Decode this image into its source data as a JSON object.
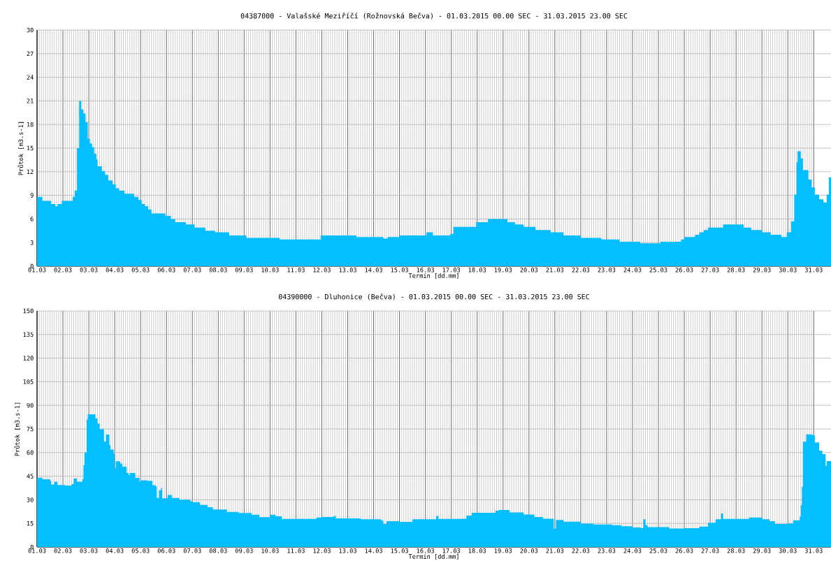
{
  "chart_data": [
    {
      "type": "area",
      "title": "04387000 - Valašské Meziříčí (Rožnovská Bečva) - 01.03.2015 00.00 SEC - 31.03.2015 23.00 SEC",
      "xlabel": "Termín [dd.mm]",
      "ylabel": "Průtok [m3.s-1]",
      "color": "#04befe",
      "grid": true,
      "x": [
        "2015-03-01T00:00",
        "2015-03-01T05:00",
        "2015-03-01T13:00",
        "2015-03-01T17:00",
        "2015-03-01T19:00",
        "2015-03-01T23:00",
        "2015-03-02T09:00",
        "2015-03-02T11:00",
        "2015-03-02T13:00",
        "2015-03-02T15:00",
        "2015-03-02T17:00",
        "2015-03-02T19:00",
        "2015-03-02T21:00",
        "2015-03-02T23:00",
        "2015-03-03T01:00",
        "2015-03-03T03:00",
        "2015-03-03T05:00",
        "2015-03-03T07:00",
        "2015-03-03T08:00",
        "2015-03-03T12:00",
        "2015-03-03T15:00",
        "2015-03-03T18:00",
        "2015-03-03T22:00",
        "2015-03-04T01:00",
        "2015-03-04T04:00",
        "2015-03-04T09:00",
        "2015-03-04T18:00",
        "2015-03-04T22:00",
        "2015-03-05T01:00",
        "2015-03-05T04:00",
        "2015-03-05T07:00",
        "2015-03-05T10:00",
        "2015-03-05T23:00",
        "2015-03-06T04:00",
        "2015-03-06T08:00",
        "2015-03-06T18:00",
        "2015-03-07T02:00",
        "2015-03-07T12:00",
        "2015-03-07T21:00",
        "2015-03-08T10:00",
        "2015-03-09T02:00",
        "2015-03-10T09:00",
        "2015-03-11T23:00",
        "2015-03-13T08:00",
        "2015-03-14T09:00",
        "2015-03-14T13:00",
        "2015-03-15T00:00",
        "2015-03-16T01:00",
        "2015-03-16T07:00",
        "2015-03-16T23:00",
        "2015-03-17T02:00",
        "2015-03-17T23:00",
        "2015-03-18T10:00",
        "2015-03-19T04:00",
        "2015-03-19T11:00",
        "2015-03-19T19:00",
        "2015-03-20T06:00",
        "2015-03-20T20:00",
        "2015-03-21T08:00",
        "2015-03-22T00:00",
        "2015-03-22T19:00",
        "2015-03-23T12:00",
        "2015-03-24T07:00",
        "2015-03-25T02:00",
        "2015-03-25T21:00",
        "2015-03-26T00:00",
        "2015-03-26T10:00",
        "2015-03-26T14:00",
        "2015-03-26T18:00",
        "2015-03-26T22:00",
        "2015-03-27T12:00",
        "2015-03-28T07:00",
        "2015-03-28T14:00",
        "2015-03-29T00:00",
        "2015-03-29T08:00",
        "2015-03-29T18:00",
        "2015-03-29T23:00",
        "2015-03-30T03:00",
        "2015-03-30T06:00",
        "2015-03-30T08:00",
        "2015-03-30T09:00",
        "2015-03-30T12:00",
        "2015-03-30T14:00",
        "2015-03-30T19:00",
        "2015-03-30T22:00",
        "2015-03-31T01:00",
        "2015-03-31T05:00",
        "2015-03-31T09:00",
        "2015-03-31T12:00",
        "2015-03-31T14:00",
        "2015-03-31T16:00"
      ],
      "values": [
        8.8,
        8.3,
        7.9,
        7.6,
        7.9,
        8.3,
        8.8,
        9.6,
        15,
        21,
        19.9,
        19.4,
        18.3,
        16.2,
        15.6,
        15.1,
        14.3,
        13.6,
        12.7,
        12.1,
        11.6,
        10.9,
        10.4,
        9.9,
        9.6,
        9.2,
        8.8,
        8.4,
        7.9,
        7.6,
        7.2,
        6.7,
        6.4,
        6,
        5.6,
        5.3,
        4.9,
        4.5,
        4.3,
        3.9,
        3.6,
        3.4,
        3.9,
        3.7,
        3.5,
        3.7,
        3.9,
        4.3,
        3.9,
        4.1,
        5,
        5.6,
        6,
        5.6,
        5.3,
        5,
        4.6,
        4.3,
        3.9,
        3.6,
        3.4,
        3.1,
        2.9,
        3.1,
        3.4,
        3.7,
        4,
        4.3,
        4.6,
        4.9,
        5.3,
        4.9,
        4.6,
        4.3,
        4,
        3.7,
        4.3,
        5.7,
        9.1,
        13.2,
        14.6,
        13.7,
        12.2,
        11,
        10,
        9.1,
        8.5,
        8.1,
        9.1,
        11.3,
        11.3
      ],
      "xlim": [
        "2015-03-01T00:00",
        "2015-03-31T16:00"
      ],
      "ylim": [
        0,
        30
      ],
      "xticks": [
        {
          "value": "2015-03-01",
          "label": "01.03"
        },
        {
          "value": "2015-03-02",
          "label": "02.03"
        },
        {
          "value": "2015-03-03",
          "label": "03.03"
        },
        {
          "value": "2015-03-04",
          "label": "04.03"
        },
        {
          "value": "2015-03-05",
          "label": "05.03"
        },
        {
          "value": "2015-03-06",
          "label": "06.03"
        },
        {
          "value": "2015-03-07",
          "label": "07.03"
        },
        {
          "value": "2015-03-08",
          "label": "08.03"
        },
        {
          "value": "2015-03-09",
          "label": "09.03"
        },
        {
          "value": "2015-03-10",
          "label": "10.03"
        },
        {
          "value": "2015-03-11",
          "label": "11.03"
        },
        {
          "value": "2015-03-12",
          "label": "12.03"
        },
        {
          "value": "2015-03-13",
          "label": "13.03"
        },
        {
          "value": "2015-03-14",
          "label": "14.03"
        },
        {
          "value": "2015-03-15",
          "label": "15.03"
        },
        {
          "value": "2015-03-16",
          "label": "16.03"
        },
        {
          "value": "2015-03-17",
          "label": "17.03"
        },
        {
          "value": "2015-03-18",
          "label": "18.03"
        },
        {
          "value": "2015-03-19",
          "label": "19.03"
        },
        {
          "value": "2015-03-20",
          "label": "20.03"
        },
        {
          "value": "2015-03-21",
          "label": "21.03"
        },
        {
          "value": "2015-03-22",
          "label": "22.03"
        },
        {
          "value": "2015-03-23",
          "label": "23.03"
        },
        {
          "value": "2015-03-24",
          "label": "24.03"
        },
        {
          "value": "2015-03-25",
          "label": "25.03"
        },
        {
          "value": "2015-03-26",
          "label": "26.03"
        },
        {
          "value": "2015-03-27",
          "label": "27.03"
        },
        {
          "value": "2015-03-28",
          "label": "28.03"
        },
        {
          "value": "2015-03-29",
          "label": "29.03"
        },
        {
          "value": "2015-03-30",
          "label": "30.03"
        },
        {
          "value": "2015-03-31",
          "label": "31.03"
        }
      ],
      "yticks": [
        0,
        3,
        6,
        9,
        12,
        15,
        18,
        21,
        24,
        27,
        30
      ]
    },
    {
      "type": "area",
      "title": "04390000 - Dluhonice (Bečva) - 01.03.2015 00.00 SEC - 31.03.2015 23.00 SEC",
      "xlabel": "Termín [dd.mm]",
      "ylabel": "Průtok [m3.s-1]",
      "color": "#04befe",
      "grid": true,
      "x": [
        "2015-03-01T00:00",
        "2015-03-01T05:00",
        "2015-03-01T12:00",
        "2015-03-01T13:00",
        "2015-03-01T16:00",
        "2015-03-01T19:00",
        "2015-03-02T02:00",
        "2015-03-02T08:00",
        "2015-03-02T10:00",
        "2015-03-02T13:00",
        "2015-03-02T18:00",
        "2015-03-02T19:00",
        "2015-03-02T20:00",
        "2015-03-02T22:00",
        "2015-03-02T23:00",
        "2015-03-03T06:00",
        "2015-03-03T08:00",
        "2015-03-03T10:00",
        "2015-03-03T14:00",
        "2015-03-03T16:00",
        "2015-03-03T19:00",
        "2015-03-03T20:00",
        "2015-03-03T23:00",
        "2015-03-04T00:00",
        "2015-03-04T01:00",
        "2015-03-04T05:00",
        "2015-03-04T07:00",
        "2015-03-04T11:00",
        "2015-03-04T13:00",
        "2015-03-04T14:00",
        "2015-03-04T19:00",
        "2015-03-04T23:00",
        "2015-03-05T00:00",
        "2015-03-05T06:00",
        "2015-03-05T11:00",
        "2015-03-05T14:00",
        "2015-03-05T15:00",
        "2015-03-05T17:00",
        "2015-03-05T19:00",
        "2015-03-05T20:00",
        "2015-03-06T01:00",
        "2015-03-06T05:00",
        "2015-03-06T12:00",
        "2015-03-06T22:00",
        "2015-03-07T00:00",
        "2015-03-07T07:00",
        "2015-03-07T14:00",
        "2015-03-07T19:00",
        "2015-03-08T08:00",
        "2015-03-08T19:00",
        "2015-03-09T07:00",
        "2015-03-09T14:00",
        "2015-03-10T00:00",
        "2015-03-10T05:00",
        "2015-03-10T11:00",
        "2015-03-10T12:00",
        "2015-03-11T19:00",
        "2015-03-12T00:00",
        "2015-03-12T11:00",
        "2015-03-12T13:00",
        "2015-03-13T12:00",
        "2015-03-14T07:00",
        "2015-03-14T09:00",
        "2015-03-14T12:00",
        "2015-03-15T00:00",
        "2015-03-15T12:00",
        "2015-03-16T10:00",
        "2015-03-16T12:00",
        "2015-03-17T10:00",
        "2015-03-17T14:00",
        "2015-03-17T19:00",
        "2015-03-18T17:00",
        "2015-03-18T20:00",
        "2015-03-19T06:00",
        "2015-03-19T19:00",
        "2015-03-20T05:00",
        "2015-03-20T13:00",
        "2015-03-20T23:00",
        "2015-03-21T01:00",
        "2015-03-21T08:00",
        "2015-03-21T17:00",
        "2015-03-22T00:00",
        "2015-03-22T12:00",
        "2015-03-23T05:00",
        "2015-03-23T14:00",
        "2015-03-24T00:00",
        "2015-03-24T08:00",
        "2015-03-24T10:00",
        "2015-03-24T12:00",
        "2015-03-24T14:00",
        "2015-03-25T10:00",
        "2015-03-26T00:00",
        "2015-03-26T14:00",
        "2015-03-26T22:00",
        "2015-03-27T05:00",
        "2015-03-27T10:00",
        "2015-03-27T12:00",
        "2015-03-28T12:00",
        "2015-03-29T00:00",
        "2015-03-29T07:00",
        "2015-03-29T12:00",
        "2015-03-30T00:00",
        "2015-03-30T05:00",
        "2015-03-30T11:00",
        "2015-03-30T12:00",
        "2015-03-30T13:00",
        "2015-03-30T14:00",
        "2015-03-30T17:00",
        "2015-03-30T23:00",
        "2015-03-31T01:00",
        "2015-03-31T05:00",
        "2015-03-31T08:00",
        "2015-03-31T11:00",
        "2015-03-31T12:00",
        "2015-03-31T16:00"
      ],
      "values": [
        44,
        43,
        42,
        39.7,
        41.5,
        39.4,
        39,
        40,
        43.5,
        41.5,
        43,
        52,
        60,
        81,
        84.3,
        81.8,
        78.4,
        74.9,
        67,
        71.5,
        64.8,
        61.9,
        59.2,
        50,
        54.5,
        53,
        51,
        47,
        45.6,
        47,
        43.9,
        41.5,
        42.4,
        42,
        39.3,
        38.5,
        31.2,
        36,
        37.5,
        30.9,
        33.1,
        31.2,
        30.1,
        29.1,
        28.5,
        26.7,
        25.3,
        23.8,
        22.3,
        21.6,
        20.5,
        19,
        20.5,
        19.5,
        17.6,
        17.9,
        18.8,
        19.1,
        19.8,
        18.2,
        17.6,
        16.9,
        14.6,
        16.4,
        16,
        17.6,
        19.8,
        17.9,
        18,
        20,
        21.7,
        23.1,
        23.5,
        22,
        20.6,
        19.1,
        18,
        11.7,
        17.2,
        16.1,
        16.1,
        14.9,
        14.3,
        13.9,
        13.2,
        12.4,
        12,
        17.6,
        14,
        12.7,
        11.8,
        12,
        13,
        15.4,
        17.6,
        21.3,
        17.9,
        18.8,
        17.6,
        16.4,
        14.6,
        15,
        17,
        19.4,
        26.5,
        38.3,
        66.9,
        71.6,
        70.9,
        66.4,
        61.2,
        59,
        51.6,
        54.6,
        54.6
      ],
      "xlim": [
        "2015-03-01T00:00",
        "2015-03-31T16:00"
      ],
      "ylim": [
        0,
        150
      ],
      "xticks": [
        {
          "value": "2015-03-01",
          "label": "01.03"
        },
        {
          "value": "2015-03-02",
          "label": "02.03"
        },
        {
          "value": "2015-03-03",
          "label": "03.03"
        },
        {
          "value": "2015-03-04",
          "label": "04.03"
        },
        {
          "value": "2015-03-05",
          "label": "05.03"
        },
        {
          "value": "2015-03-06",
          "label": "06.03"
        },
        {
          "value": "2015-03-07",
          "label": "07.03"
        },
        {
          "value": "2015-03-08",
          "label": "08.03"
        },
        {
          "value": "2015-03-09",
          "label": "09.03"
        },
        {
          "value": "2015-03-10",
          "label": "10.03"
        },
        {
          "value": "2015-03-11",
          "label": "11.03"
        },
        {
          "value": "2015-03-12",
          "label": "12.03"
        },
        {
          "value": "2015-03-13",
          "label": "13.03"
        },
        {
          "value": "2015-03-14",
          "label": "14.03"
        },
        {
          "value": "2015-03-15",
          "label": "15.03"
        },
        {
          "value": "2015-03-16",
          "label": "16.03"
        },
        {
          "value": "2015-03-17",
          "label": "17.03"
        },
        {
          "value": "2015-03-18",
          "label": "18.03"
        },
        {
          "value": "2015-03-19",
          "label": "19.03"
        },
        {
          "value": "2015-03-20",
          "label": "20.03"
        },
        {
          "value": "2015-03-21",
          "label": "21.03"
        },
        {
          "value": "2015-03-22",
          "label": "22.03"
        },
        {
          "value": "2015-03-23",
          "label": "23.03"
        },
        {
          "value": "2015-03-24",
          "label": "24.03"
        },
        {
          "value": "2015-03-25",
          "label": "25.03"
        },
        {
          "value": "2015-03-26",
          "label": "26.03"
        },
        {
          "value": "2015-03-27",
          "label": "27.03"
        },
        {
          "value": "2015-03-28",
          "label": "28.03"
        },
        {
          "value": "2015-03-29",
          "label": "29.03"
        },
        {
          "value": "2015-03-30",
          "label": "30.03"
        },
        {
          "value": "2015-03-31",
          "label": "31.03"
        }
      ],
      "yticks": [
        0,
        15,
        30,
        45,
        60,
        75,
        90,
        105,
        120,
        135,
        150
      ]
    }
  ]
}
